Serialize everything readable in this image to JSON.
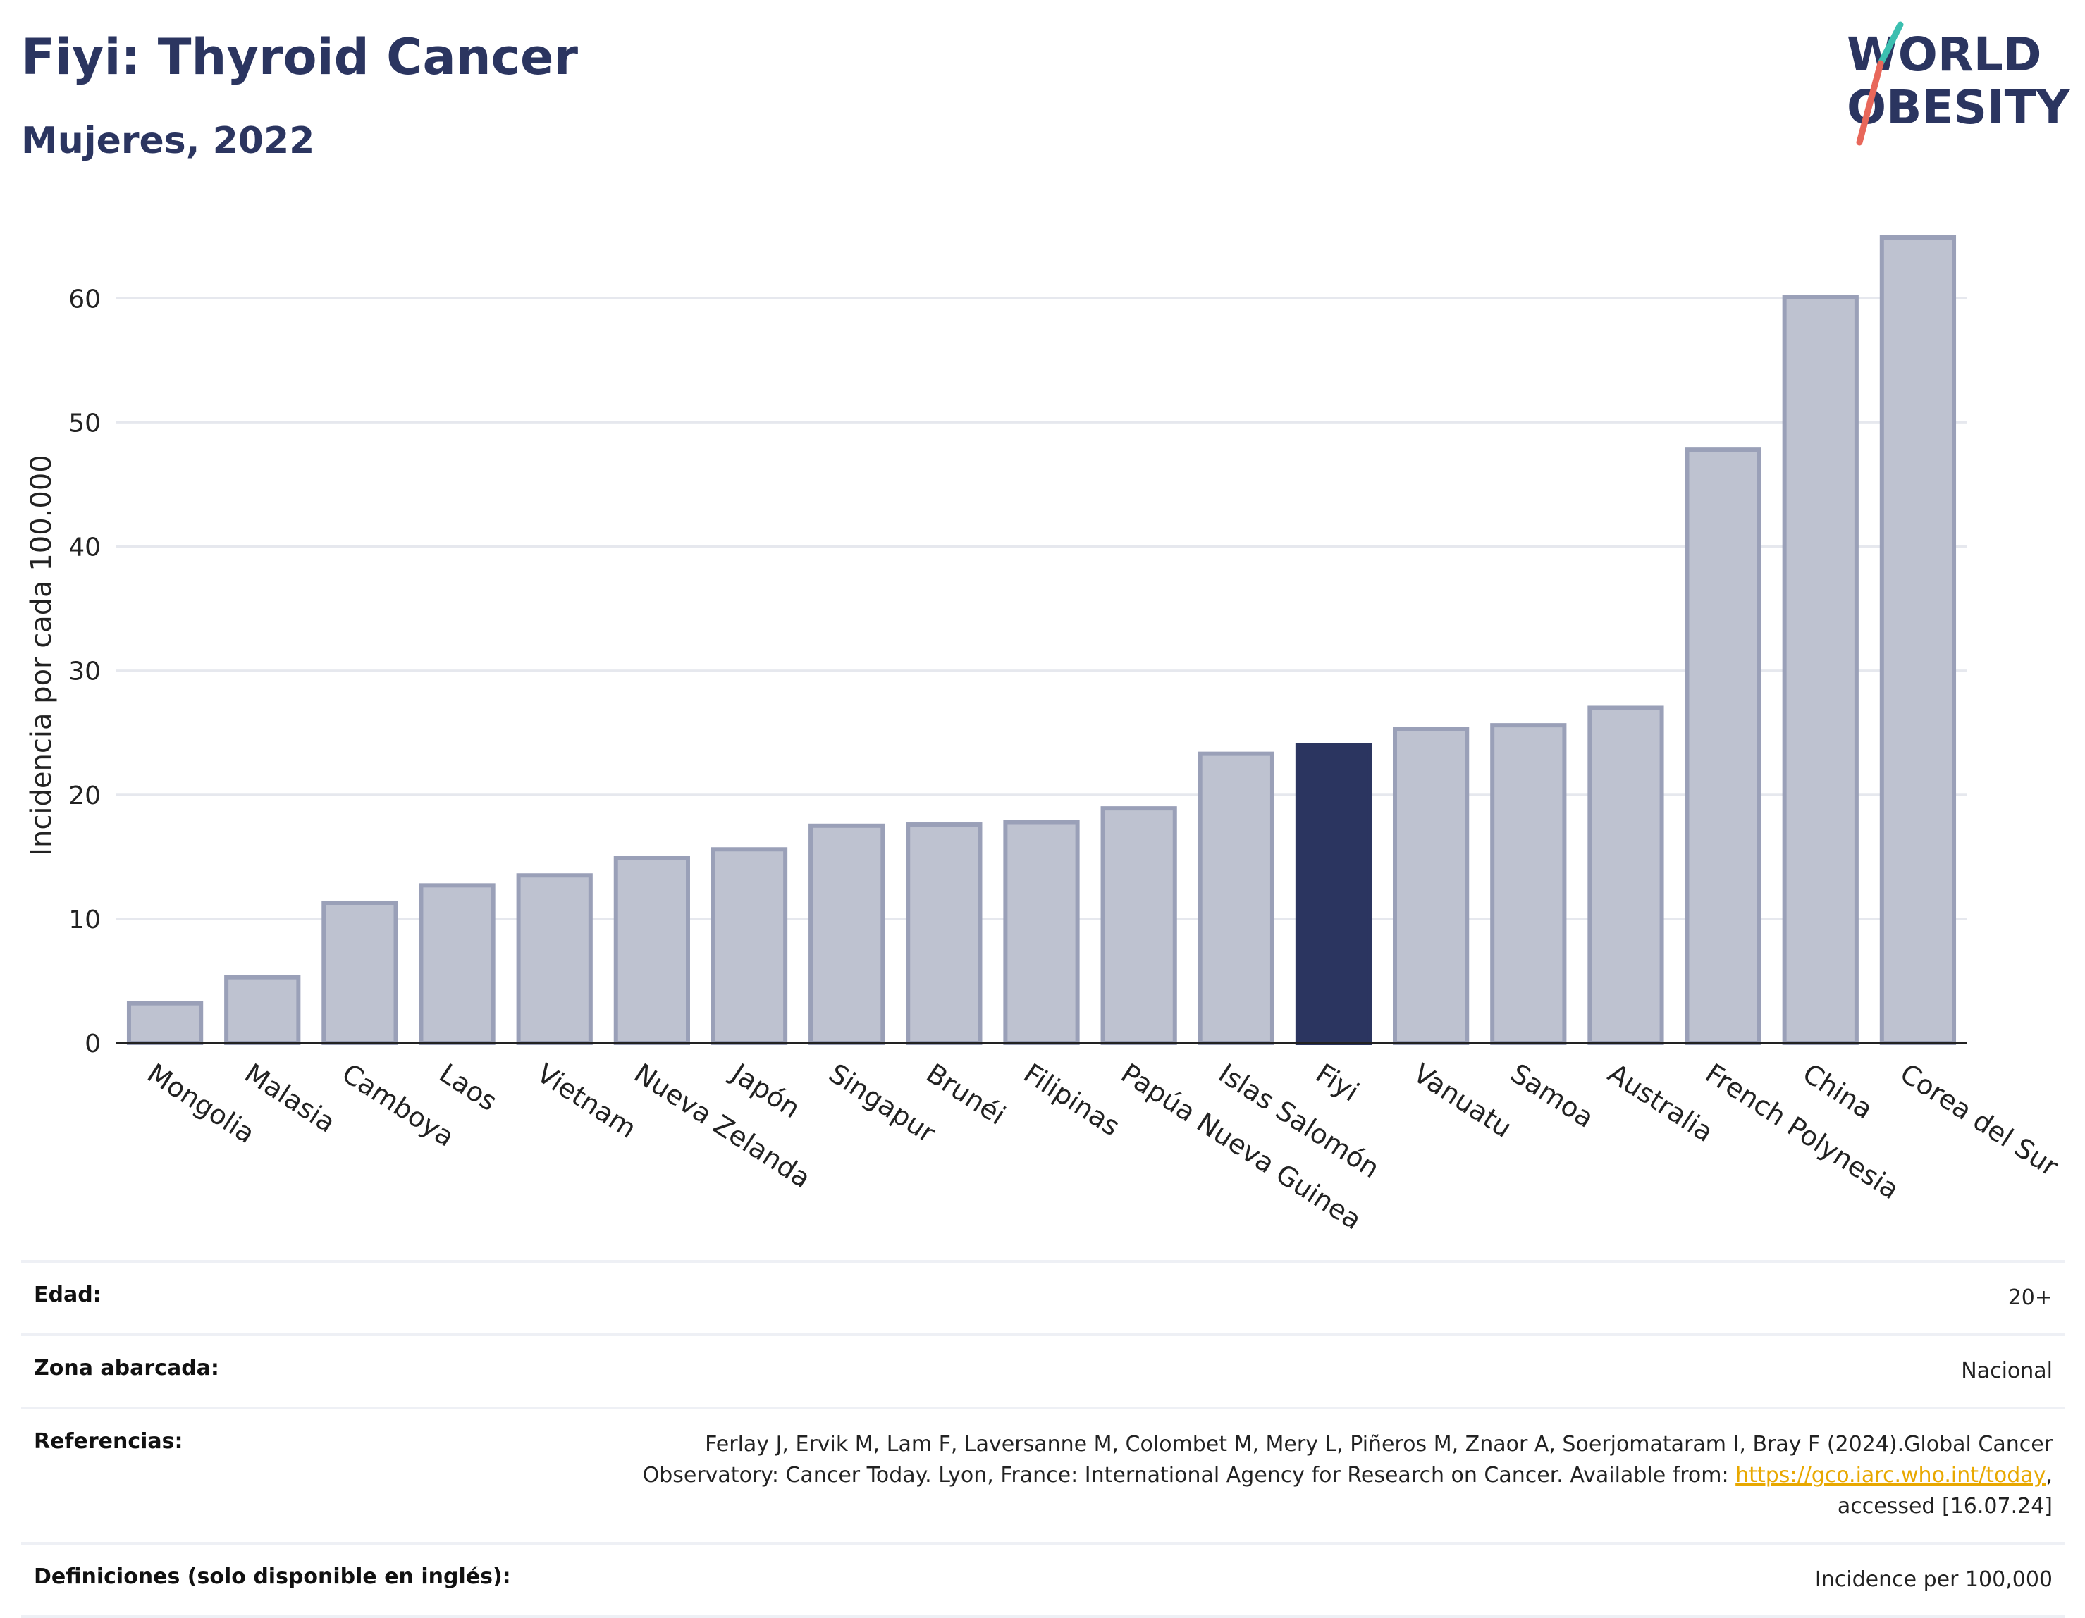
{
  "header": {
    "title": "Fiyi: Thyroid Cancer",
    "subtitle": "Mujeres, 2022"
  },
  "logo": {
    "line1": "WORLD",
    "line2": "OBESITY",
    "colors": {
      "text": "#2b3560",
      "slash_top": "#3bbfb0",
      "slash_bottom": "#e8675a"
    }
  },
  "colors": {
    "bar_default_fill": "#bec2d0",
    "bar_default_stroke": "#9aa0b8",
    "bar_highlight": "#2b3560",
    "grid": "#e6e8ee",
    "axis": "#222222"
  },
  "chart_data": {
    "type": "bar",
    "title": "Fiyi: Thyroid Cancer",
    "subtitle": "Mujeres, 2022",
    "ylabel": "Incidencia por cada 100.000",
    "ylim": [
      0,
      67
    ],
    "yticks": [
      0,
      10,
      20,
      30,
      40,
      50,
      60
    ],
    "grid": true,
    "highlight": "Fiyi",
    "categories": [
      "Mongolia",
      "Malasia",
      "Camboya",
      "Laos",
      "Vietnam",
      "Nueva Zelanda",
      "Japón",
      "Singapur",
      "Brunéi",
      "Filipinas",
      "Papúa Nueva Guinea",
      "Islas Salomón",
      "Fiyi",
      "Vanuatu",
      "Samoa",
      "Australia",
      "French Polynesia",
      "China",
      "Corea del Sur"
    ],
    "values": [
      3.2,
      5.3,
      11.3,
      12.7,
      13.5,
      14.9,
      15.6,
      17.5,
      17.6,
      17.8,
      18.9,
      23.3,
      24.0,
      25.3,
      25.6,
      27.0,
      47.8,
      60.1,
      64.9
    ]
  },
  "meta": {
    "age_label": "Edad:",
    "age_value": "20+",
    "area_label": "Zona abarcada:",
    "area_value": "Nacional",
    "refs_label": "Referencias:",
    "refs_text_before": "Ferlay J, Ervik M, Lam F, Laversanne M, Colombet M, Mery L, Piñeros M, Znaor A, Soerjomataram I, Bray F (2024).Global Cancer Observatory: Cancer Today. Lyon, France: International Agency for Research on Cancer. Available from: ",
    "refs_link": "https://gco.iarc.who.int/today",
    "refs_text_after": ", accessed [16.07.24]",
    "defs_label": "Definiciones (solo disponible en inglés):",
    "defs_value": "Incidence per 100,000"
  }
}
